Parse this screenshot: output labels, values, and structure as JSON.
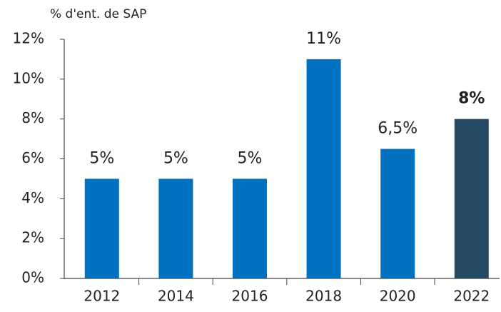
{
  "chart_data": {
    "type": "bar",
    "y_label": "% d'ent. de SAP",
    "categories": [
      "2012",
      "2014",
      "2016",
      "2018",
      "2020",
      "2022"
    ],
    "values": [
      5,
      5,
      5,
      11,
      6.5,
      8
    ],
    "value_labels": [
      "5%",
      "5%",
      "5%",
      "11%",
      "6,5%",
      "8%"
    ],
    "color": "#0070c0",
    "colors": [
      "#0070c0",
      "#0070c0",
      "#0070c0",
      "#0070c0",
      "#0070c0",
      "#244a64"
    ],
    "ylim": [
      0,
      12
    ],
    "yticks": [
      {
        "value": 0,
        "label": "0%"
      },
      {
        "value": 2,
        "label": "2%"
      },
      {
        "value": 4,
        "label": "4%"
      },
      {
        "value": 6,
        "label": "6%"
      },
      {
        "value": 8,
        "label": "8%"
      },
      {
        "value": 10,
        "label": "10%"
      },
      {
        "value": 12,
        "label": "12%"
      }
    ],
    "grid": false
  }
}
